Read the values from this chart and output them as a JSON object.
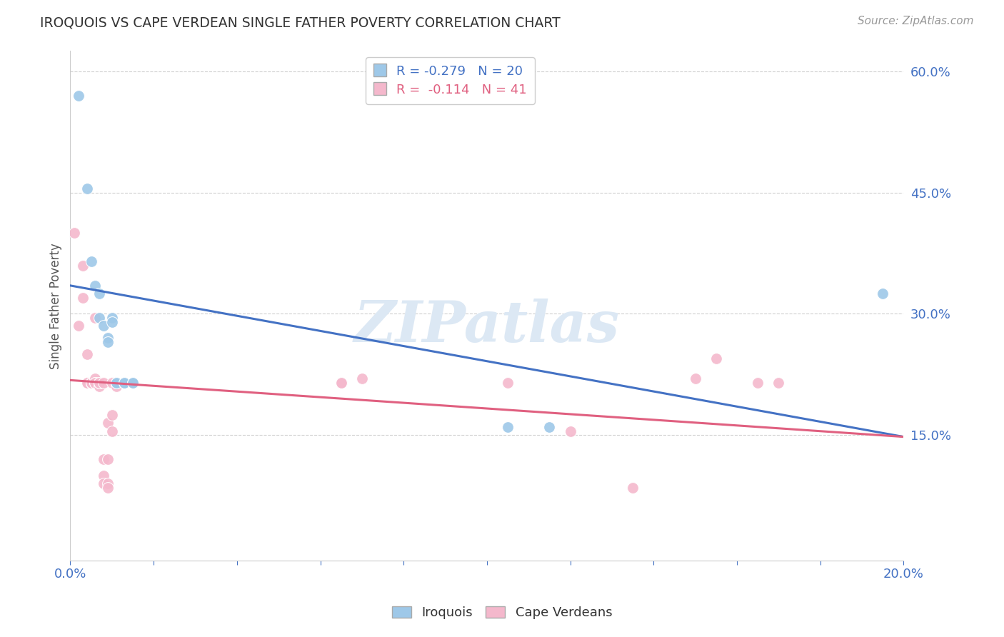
{
  "title": "IROQUOIS VS CAPE VERDEAN SINGLE FATHER POVERTY CORRELATION CHART",
  "source": "Source: ZipAtlas.com",
  "ylabel": "Single Father Poverty",
  "right_yticks": [
    15.0,
    30.0,
    45.0,
    60.0
  ],
  "legend_iq": {
    "R": -0.279,
    "N": 20,
    "color": "#9ec8e8"
  },
  "legend_cv": {
    "R": -0.114,
    "N": 41,
    "color": "#f4b8cc"
  },
  "iroquois_points": [
    [
      0.002,
      0.57
    ],
    [
      0.004,
      0.455
    ],
    [
      0.005,
      0.365
    ],
    [
      0.006,
      0.335
    ],
    [
      0.007,
      0.295
    ],
    [
      0.007,
      0.325
    ],
    [
      0.008,
      0.285
    ],
    [
      0.009,
      0.27
    ],
    [
      0.009,
      0.265
    ],
    [
      0.01,
      0.295
    ],
    [
      0.01,
      0.29
    ],
    [
      0.011,
      0.215
    ],
    [
      0.011,
      0.215
    ],
    [
      0.013,
      0.215
    ],
    [
      0.013,
      0.215
    ],
    [
      0.015,
      0.215
    ],
    [
      0.015,
      0.215
    ],
    [
      0.105,
      0.16
    ],
    [
      0.115,
      0.16
    ],
    [
      0.195,
      0.325
    ]
  ],
  "cape_verdean_points": [
    [
      0.001,
      0.4
    ],
    [
      0.002,
      0.285
    ],
    [
      0.003,
      0.36
    ],
    [
      0.003,
      0.32
    ],
    [
      0.004,
      0.215
    ],
    [
      0.004,
      0.25
    ],
    [
      0.004,
      0.215
    ],
    [
      0.005,
      0.215
    ],
    [
      0.005,
      0.215
    ],
    [
      0.005,
      0.215
    ],
    [
      0.005,
      0.215
    ],
    [
      0.006,
      0.295
    ],
    [
      0.006,
      0.22
    ],
    [
      0.006,
      0.215
    ],
    [
      0.006,
      0.215
    ],
    [
      0.007,
      0.21
    ],
    [
      0.007,
      0.215
    ],
    [
      0.007,
      0.215
    ],
    [
      0.007,
      0.215
    ],
    [
      0.008,
      0.215
    ],
    [
      0.008,
      0.12
    ],
    [
      0.008,
      0.1
    ],
    [
      0.008,
      0.09
    ],
    [
      0.009,
      0.165
    ],
    [
      0.009,
      0.12
    ],
    [
      0.009,
      0.09
    ],
    [
      0.009,
      0.085
    ],
    [
      0.01,
      0.215
    ],
    [
      0.01,
      0.175
    ],
    [
      0.01,
      0.155
    ],
    [
      0.011,
      0.21
    ],
    [
      0.065,
      0.215
    ],
    [
      0.065,
      0.215
    ],
    [
      0.07,
      0.22
    ],
    [
      0.105,
      0.215
    ],
    [
      0.12,
      0.155
    ],
    [
      0.135,
      0.085
    ],
    [
      0.15,
      0.22
    ],
    [
      0.155,
      0.245
    ],
    [
      0.165,
      0.215
    ],
    [
      0.17,
      0.215
    ]
  ],
  "iroquois_line": {
    "x0": 0.0,
    "y0": 0.335,
    "x1": 0.2,
    "y1": 0.148
  },
  "cape_verdean_line": {
    "x0": 0.0,
    "y0": 0.218,
    "x1": 0.2,
    "y1": 0.148
  },
  "xlim": [
    0.0,
    0.2
  ],
  "ylim": [
    -0.005,
    0.625
  ],
  "background_color": "#ffffff",
  "grid_color": "#d0d0d0",
  "title_color": "#333333",
  "axis_color": "#4472c4",
  "iq_line_color": "#4472c4",
  "cv_line_color": "#e06080",
  "watermark_text": "ZIPatlas",
  "watermark_color": "#dce8f4"
}
